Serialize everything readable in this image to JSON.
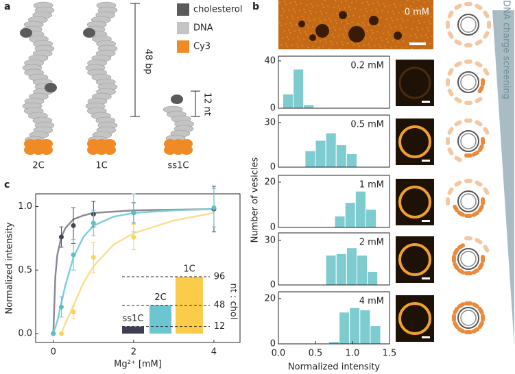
{
  "panel_labels": [
    "a",
    "b",
    "c"
  ],
  "panel_a": {
    "legend": [
      {
        "name": "cholesterol",
        "color": "#5a5a5a"
      },
      {
        "name": "DNA",
        "color": "#c4c4c4"
      },
      {
        "name": "Cy3",
        "color": "#f08a24"
      }
    ],
    "molecules": [
      "2C",
      "1C",
      "ss1C"
    ],
    "scale_bars": [
      "48 bp",
      "12 nt"
    ]
  },
  "panel_b": {
    "image_label": "0 mM",
    "y_label": "Number of vesicles",
    "x_label": "Normalized intensity",
    "side_label": "DNA charge screening"
  },
  "chart_data": [
    {
      "type": "histogram",
      "title": "0.2 mM",
      "bins": [
        0.06,
        0.2,
        0.34,
        0.48
      ],
      "values": [
        12,
        33,
        3
      ],
      "color": "#7ecbd0",
      "xlim": [
        0,
        1.5
      ],
      "ylim": [
        0,
        44
      ],
      "yticks": [
        0,
        40
      ]
    },
    {
      "type": "histogram",
      "title": "0.5 mM",
      "bins": [
        0.36,
        0.5,
        0.64,
        0.78,
        0.92,
        1.06
      ],
      "values": [
        11,
        18,
        23,
        15,
        9
      ],
      "color": "#7ecbd0",
      "xlim": [
        0,
        1.5
      ],
      "ylim": [
        0,
        35
      ],
      "yticks": [
        0,
        30
      ]
    },
    {
      "type": "histogram",
      "title": "1 mM",
      "bins": [
        0.76,
        0.9,
        1.04,
        1.18,
        1.32
      ],
      "values": [
        5,
        11,
        16,
        8
      ],
      "color": "#7ecbd0",
      "xlim": [
        0,
        1.5
      ],
      "ylim": [
        0,
        23
      ],
      "yticks": [
        0,
        20
      ]
    },
    {
      "type": "histogram",
      "title": "2 mM",
      "bins": [
        0.64,
        0.78,
        0.92,
        1.06,
        1.2,
        1.34
      ],
      "values": [
        20,
        21,
        25,
        20,
        9
      ],
      "color": "#7ecbd0",
      "xlim": [
        0,
        1.5
      ],
      "ylim": [
        0,
        35
      ],
      "yticks": [
        0,
        30
      ]
    },
    {
      "type": "histogram",
      "title": "4 mM",
      "bins": [
        0.68,
        0.82,
        0.96,
        1.1,
        1.24,
        1.38
      ],
      "values": [
        1,
        14,
        16,
        15,
        8
      ],
      "color": "#7ecbd0",
      "xlim": [
        0,
        1.5
      ],
      "ylim": [
        0,
        23
      ],
      "yticks": [
        0,
        20
      ],
      "xticks": [
        {
          "value": 0,
          "label": "0.0"
        },
        {
          "value": 0.5,
          "label": "0.5"
        },
        {
          "value": 1,
          "label": "1.0"
        },
        {
          "value": 1.5,
          "label": "1.5"
        }
      ]
    },
    {
      "type": "scatter",
      "x_label": "Mg²⁺ [mM]",
      "y_label": "Normalized intensity",
      "xlim": [
        -0.44,
        4.65
      ],
      "ylim": [
        -0.07,
        1.1
      ],
      "xticks": [
        0,
        2,
        4
      ],
      "yticks": [
        {
          "value": 0,
          "label": "0.0"
        },
        {
          "value": 0.5,
          "label": "0.5"
        },
        {
          "value": 1,
          "label": "1.0"
        }
      ],
      "series": [
        {
          "color": "#454555",
          "x": [
            0,
            0.2,
            0.5,
            1,
            2,
            4
          ],
          "values": [
            0,
            0.76,
            0.85,
            0.94,
            0.95,
            0.98
          ],
          "errors": [
            0,
            0.08,
            0.14,
            0.1,
            0.08,
            0.18
          ]
        },
        {
          "color": "#5bc0cc",
          "x": [
            0,
            0.2,
            0.5,
            1,
            2,
            4
          ],
          "values": [
            0,
            0.21,
            0.62,
            0.87,
            0.95,
            0.99
          ],
          "errors": [
            0,
            0.08,
            0.12,
            0.1,
            0.15,
            0.15
          ]
        },
        {
          "color": "#f7d460",
          "x": [
            0.2,
            0.5,
            1,
            2
          ],
          "values": [
            0,
            0.17,
            0.6,
            0.76
          ],
          "errors": [
            0,
            0.05,
            0.12,
            0.1
          ]
        }
      ],
      "fits": [
        {
          "color": "#8a8a95",
          "x": [
            0,
            0.05,
            0.1,
            0.2,
            0.3,
            0.5,
            0.75,
            1,
            1.5,
            2,
            3,
            4
          ],
          "values": [
            0,
            0.45,
            0.62,
            0.76,
            0.83,
            0.9,
            0.93,
            0.95,
            0.96,
            0.97,
            0.975,
            0.98
          ]
        },
        {
          "color": "#7fcfd8",
          "x": [
            0,
            0.1,
            0.2,
            0.3,
            0.5,
            0.75,
            1,
            1.5,
            2,
            3,
            4
          ],
          "values": [
            0,
            0.1,
            0.24,
            0.38,
            0.6,
            0.76,
            0.85,
            0.92,
            0.95,
            0.97,
            0.98
          ]
        },
        {
          "color": "#f9e08e",
          "x": [
            0.2,
            0.3,
            0.5,
            0.75,
            1,
            1.5,
            2,
            3,
            4
          ],
          "values": [
            0,
            0.08,
            0.22,
            0.4,
            0.53,
            0.7,
            0.79,
            0.89,
            0.95
          ]
        }
      ]
    },
    {
      "type": "bar",
      "categories": [
        "ss1C",
        "2C",
        "1C"
      ],
      "values": [
        12,
        48,
        96
      ],
      "colors": [
        "#3e3e55",
        "#6cc6d1",
        "#fbcc4a"
      ],
      "ylim": [
        0,
        96
      ],
      "yticks": [
        12,
        48,
        96
      ],
      "y_label": "nt : chol"
    }
  ]
}
